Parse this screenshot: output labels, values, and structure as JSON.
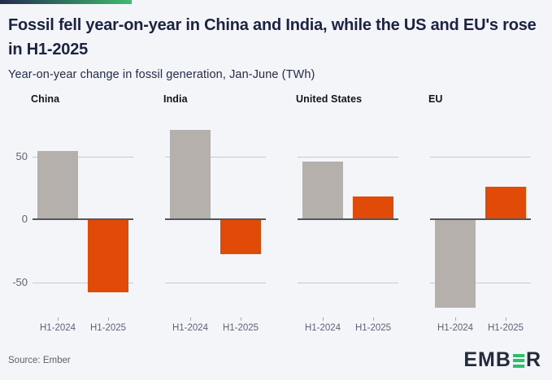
{
  "header": {
    "title": "Fossil fell year-on-year in China and India, while the US and EU's rose in H1-2025",
    "subtitle": "Year-on-year change in fossil generation, Jan-June (TWh)"
  },
  "chart_data": {
    "type": "bar",
    "unit": "TWh",
    "title": "Year-on-year change in fossil generation, Jan-June (TWh)",
    "categories": [
      "H1-2024",
      "H1-2025"
    ],
    "series": [
      {
        "name": "H1-2024",
        "color": "#b5b0ac"
      },
      {
        "name": "H1-2025",
        "color": "#e24a08"
      }
    ],
    "regions": [
      {
        "name": "China",
        "values": [
          54,
          -58
        ]
      },
      {
        "name": "India",
        "values": [
          71,
          -28
        ]
      },
      {
        "name": "United States",
        "values": [
          46,
          18
        ]
      },
      {
        "name": "EU",
        "values": [
          -70,
          26
        ]
      }
    ],
    "y_axis": {
      "ticks": [
        {
          "label": "50",
          "value": 50
        },
        {
          "label": "0",
          "value": 0
        },
        {
          "label": "-50",
          "value": -50
        }
      ],
      "range": [
        -75,
        78
      ],
      "gridlines": true
    },
    "style": {
      "gridline_color": "#c4cad3",
      "zero_line_color": "#53565a",
      "axis_text_color": "#5b6474"
    }
  },
  "footer": {
    "source": "Source: Ember",
    "logo_prefix": "EMB",
    "logo_suffix": "R",
    "logo_green": "#2cc168",
    "logo_dark": "#242c39"
  },
  "accent": {
    "start": "#222c50",
    "end": "#3fbc6e"
  }
}
